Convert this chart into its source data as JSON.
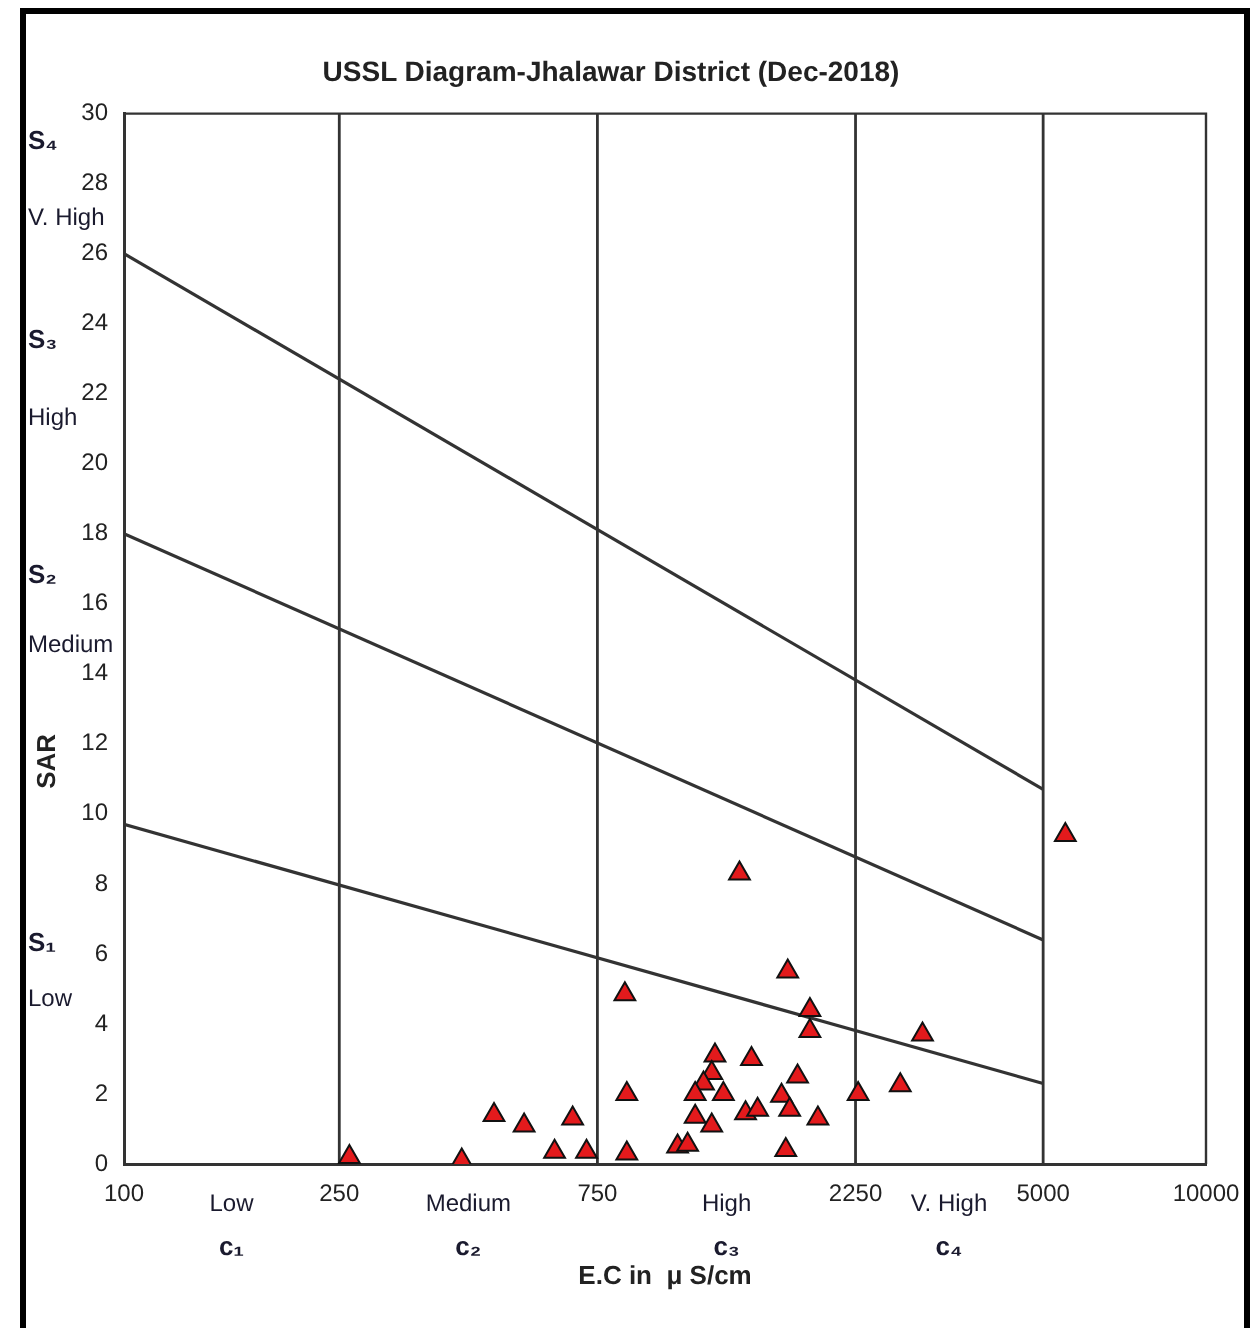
{
  "chart_data": {
    "type": "scatter",
    "title": "USSL Diagram-Jhalawar District (Dec-2018)",
    "xlabel": "E.C in  μ S/cm",
    "ylabel": "SAR",
    "log": "x",
    "xlim": [
      100,
      10000
    ],
    "xticks": [
      100,
      250,
      750,
      2250,
      5000,
      10000
    ],
    "ylim": [
      0,
      30
    ],
    "yticks": [
      0,
      2,
      4,
      6,
      8,
      10,
      12,
      14,
      16,
      18,
      20,
      22,
      24,
      26,
      28,
      30
    ],
    "grid": false,
    "legend": false,
    "marker": "triangle",
    "series": [
      {
        "color": "#e31a1c",
        "x": [
          261,
          421,
          483,
          549,
          625,
          675,
          716,
          843,
          850,
          850,
          1373,
          1686,
          1853,
          1853,
          1237,
          1220,
          1445,
          1178,
          1137,
          1282,
          1758,
          1642,
          1700,
          1917,
          1137,
          1220,
          1409,
          1483,
          1055,
          1101,
          1672,
          2992,
          2722,
          2275,
          5495
        ],
        "values": [
          0.2,
          0.1,
          1.4,
          1.1,
          0.35,
          1.3,
          0.35,
          4.85,
          2.0,
          0.3,
          8.3,
          5.5,
          4.4,
          3.8,
          3.1,
          2.6,
          3.0,
          2.3,
          2.0,
          2.0,
          2.5,
          1.95,
          1.55,
          1.3,
          1.35,
          1.1,
          1.45,
          1.55,
          0.5,
          0.55,
          0.4,
          3.7,
          2.25,
          2.0,
          9.4
        ]
      },
      {
        "type": "line",
        "marker": "none",
        "color": "#333333",
        "x": [
          100,
          5000
        ],
        "values": [
          9.7,
          2.3
        ]
      },
      {
        "type": "line",
        "marker": "none",
        "color": "#333333",
        "x": [
          100,
          5000
        ],
        "values": [
          18,
          6.4
        ]
      },
      {
        "type": "line",
        "marker": "none",
        "color": "#333333",
        "x": [
          100,
          5000
        ],
        "values": [
          26,
          10.7
        ]
      }
    ],
    "ref_lines": [
      {
        "axis": "x",
        "value": 250,
        "color": "#333333"
      },
      {
        "axis": "x",
        "value": 750,
        "color": "#333333"
      },
      {
        "axis": "x",
        "value": 2250,
        "color": "#333333"
      },
      {
        "axis": "x",
        "value": 5000,
        "color": "#333333"
      }
    ],
    "annotations": [
      "S₄",
      "V. High",
      "S₃",
      "High",
      "S₂",
      "Medium",
      "S₁",
      "Low",
      "Low",
      "c₁",
      "Medium",
      "c₂",
      "High",
      "c₃",
      "V. High",
      "c₄"
    ]
  }
}
